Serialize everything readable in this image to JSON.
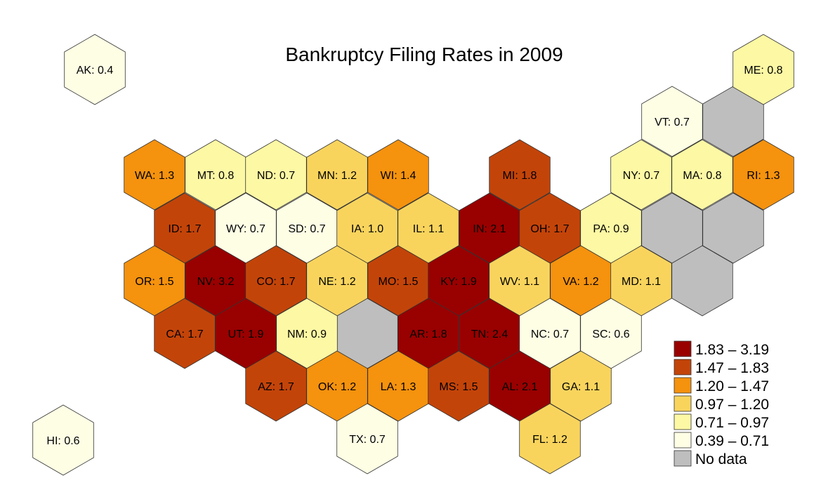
{
  "title": "Bankruptcy Filing Rates in 2009",
  "colors": {
    "bin1": "#990000",
    "bin2": "#C34409",
    "bin3": "#F5920E",
    "bin4": "#F9D45D",
    "bin5": "#FDF8A4",
    "bin6": "#FEFEE5",
    "nodata": "#BEBEBE",
    "stroke": "#333333"
  },
  "legend": [
    {
      "label": "1.83 – 3.19",
      "color_key": "bin1"
    },
    {
      "label": "1.47 – 1.83",
      "color_key": "bin2"
    },
    {
      "label": "1.20 – 1.47",
      "color_key": "bin3"
    },
    {
      "label": "0.97 – 1.20",
      "color_key": "bin4"
    },
    {
      "label": "0.71 – 0.97",
      "color_key": "bin5"
    },
    {
      "label": "0.39 – 0.71",
      "color_key": "bin6"
    },
    {
      "label": "No data",
      "color_key": "nodata"
    }
  ],
  "states": [
    {
      "abbr": "AK",
      "value": 0.4,
      "label": "AK: 0.4",
      "bin": "bin6"
    },
    {
      "abbr": "HI",
      "value": 0.6,
      "label": "HI: 0.6",
      "bin": "bin6"
    },
    {
      "abbr": "ME",
      "value": 0.8,
      "label": "ME: 0.8",
      "bin": "bin5"
    },
    {
      "abbr": "VT",
      "value": 0.7,
      "label": "VT: 0.7",
      "bin": "bin6"
    },
    {
      "abbr": "WA",
      "value": 1.3,
      "label": "WA: 1.3",
      "bin": "bin3"
    },
    {
      "abbr": "MT",
      "value": 0.8,
      "label": "MT: 0.8",
      "bin": "bin5"
    },
    {
      "abbr": "ND",
      "value": 0.7,
      "label": "ND: 0.7",
      "bin": "bin5"
    },
    {
      "abbr": "MN",
      "value": 1.2,
      "label": "MN: 1.2",
      "bin": "bin4"
    },
    {
      "abbr": "WI",
      "value": 1.4,
      "label": "WI: 1.4",
      "bin": "bin3"
    },
    {
      "abbr": "MI",
      "value": 1.8,
      "label": "MI: 1.8",
      "bin": "bin2"
    },
    {
      "abbr": "NY",
      "value": 0.7,
      "label": "NY: 0.7",
      "bin": "bin5"
    },
    {
      "abbr": "MA",
      "value": 0.8,
      "label": "MA: 0.8",
      "bin": "bin5"
    },
    {
      "abbr": "RI",
      "value": 1.3,
      "label": "RI: 1.3",
      "bin": "bin3"
    },
    {
      "abbr": "ID",
      "value": 1.7,
      "label": "ID: 1.7",
      "bin": "bin2"
    },
    {
      "abbr": "WY",
      "value": 0.7,
      "label": "WY: 0.7",
      "bin": "bin6"
    },
    {
      "abbr": "SD",
      "value": 0.7,
      "label": "SD: 0.7",
      "bin": "bin6"
    },
    {
      "abbr": "IA",
      "value": 1.0,
      "label": "IA: 1.0",
      "bin": "bin4"
    },
    {
      "abbr": "IL",
      "value": 1.1,
      "label": "IL: 1.1",
      "bin": "bin4"
    },
    {
      "abbr": "IN",
      "value": 2.1,
      "label": "IN: 2.1",
      "bin": "bin1"
    },
    {
      "abbr": "OH",
      "value": 1.7,
      "label": "OH: 1.7",
      "bin": "bin2"
    },
    {
      "abbr": "PA",
      "value": 0.9,
      "label": "PA: 0.9",
      "bin": "bin5"
    },
    {
      "abbr": "OR",
      "value": 1.5,
      "label": "OR: 1.5",
      "bin": "bin3"
    },
    {
      "abbr": "NV",
      "value": 3.2,
      "label": "NV: 3.2",
      "bin": "bin1"
    },
    {
      "abbr": "CO",
      "value": 1.7,
      "label": "CO: 1.7",
      "bin": "bin2"
    },
    {
      "abbr": "NE",
      "value": 1.2,
      "label": "NE: 1.2",
      "bin": "bin4"
    },
    {
      "abbr": "MO",
      "value": 1.5,
      "label": "MO: 1.5",
      "bin": "bin2"
    },
    {
      "abbr": "KY",
      "value": 1.9,
      "label": "KY: 1.9",
      "bin": "bin1"
    },
    {
      "abbr": "WV",
      "value": 1.1,
      "label": "WV: 1.1",
      "bin": "bin4"
    },
    {
      "abbr": "VA",
      "value": 1.2,
      "label": "VA: 1.2",
      "bin": "bin3"
    },
    {
      "abbr": "MD",
      "value": 1.1,
      "label": "MD: 1.1",
      "bin": "bin4"
    },
    {
      "abbr": "CA",
      "value": 1.7,
      "label": "CA: 1.7",
      "bin": "bin2"
    },
    {
      "abbr": "UT",
      "value": 1.9,
      "label": "UT: 1.9",
      "bin": "bin1"
    },
    {
      "abbr": "NM",
      "value": 0.9,
      "label": "NM: 0.9",
      "bin": "bin5"
    },
    {
      "abbr": "AR",
      "value": 1.8,
      "label": "AR: 1.8",
      "bin": "bin1"
    },
    {
      "abbr": "TN",
      "value": 2.4,
      "label": "TN: 2.4",
      "bin": "bin1"
    },
    {
      "abbr": "NC",
      "value": 0.7,
      "label": "NC: 0.7",
      "bin": "bin6"
    },
    {
      "abbr": "SC",
      "value": 0.6,
      "label": "SC: 0.6",
      "bin": "bin6"
    },
    {
      "abbr": "AZ",
      "value": 1.7,
      "label": "AZ: 1.7",
      "bin": "bin2"
    },
    {
      "abbr": "OK",
      "value": 1.2,
      "label": "OK: 1.2",
      "bin": "bin3"
    },
    {
      "abbr": "LA",
      "value": 1.3,
      "label": "LA: 1.3",
      "bin": "bin3"
    },
    {
      "abbr": "MS",
      "value": 1.5,
      "label": "MS: 1.5",
      "bin": "bin2"
    },
    {
      "abbr": "AL",
      "value": 2.1,
      "label": "AL: 2.1",
      "bin": "bin1"
    },
    {
      "abbr": "GA",
      "value": 1.1,
      "label": "GA: 1.1",
      "bin": "bin4"
    },
    {
      "abbr": "TX",
      "value": 0.7,
      "label": "TX: 0.7",
      "bin": "bin6"
    },
    {
      "abbr": "FL",
      "value": 1.2,
      "label": "FL: 1.2",
      "bin": "bin4"
    }
  ],
  "nodata_cells": [
    "nh",
    "ct",
    "nj",
    "de",
    "dc",
    "ks"
  ]
}
